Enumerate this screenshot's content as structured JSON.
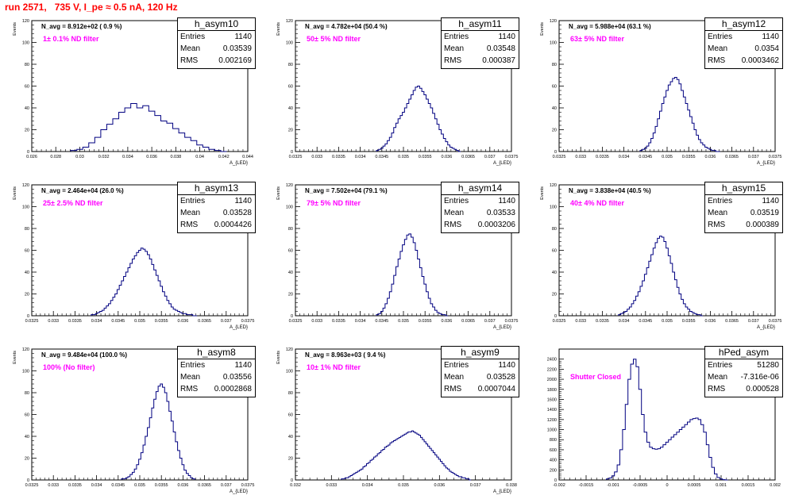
{
  "page": {
    "title": "run 2571,   735 V, I_pe ≈ 0.5 nA, 120 Hz"
  },
  "colors": {
    "title": "#ff0000",
    "histogram_line": "#000080",
    "annotation": "#ff00ff",
    "axes": "#000000"
  },
  "stats_labels": {
    "entries": "Entries",
    "mean": "Mean",
    "rms": "RMS"
  },
  "chart_data": [
    {
      "type": "histogram",
      "name": "h_asym10",
      "n_avg_text": "N_avg = 8.912e+02 ( 0.9 %)",
      "filter_text": "1± 0.1% ND filter",
      "entries": "1140",
      "mean": "0.03539",
      "rms": "0.002169",
      "ylabel": "Events",
      "xlabel": "A_{LED}",
      "xlim": [
        0.026,
        0.044
      ],
      "ylim": [
        0,
        120
      ],
      "x_ticks": [
        "0.026",
        "0.028",
        "0.03",
        "0.032",
        "0.034",
        "0.036",
        "0.038",
        "0.04",
        "0.042",
        "0.044"
      ],
      "y_ticks": [
        "0",
        "20",
        "40",
        "60",
        "80",
        "100",
        "120"
      ],
      "bin_centers": [
        0.0295,
        0.03,
        0.0305,
        0.031,
        0.0315,
        0.032,
        0.0325,
        0.033,
        0.0335,
        0.034,
        0.0345,
        0.035,
        0.0355,
        0.036,
        0.0365,
        0.037,
        0.0375,
        0.038,
        0.0385,
        0.039,
        0.0395,
        0.04,
        0.0405,
        0.041,
        0.0415,
        0.042
      ],
      "counts": [
        1,
        2,
        4,
        8,
        13,
        20,
        25,
        30,
        36,
        40,
        44,
        40,
        42,
        37,
        33,
        28,
        26,
        21,
        17,
        13,
        10,
        6,
        4,
        2,
        1,
        0
      ]
    },
    {
      "type": "histogram",
      "name": "h_asym11",
      "n_avg_text": "N_avg = 4.782e+04 (50.4 %)",
      "filter_text": "50± 5% ND filter",
      "entries": "1140",
      "mean": "0.03548",
      "rms": "0.000387",
      "ylabel": "Events",
      "xlabel": "A_{LED}",
      "xlim": [
        0.0325,
        0.0375
      ],
      "ylim": [
        0,
        120
      ],
      "x_ticks": [
        "0.0325",
        "0.033",
        "0.0335",
        "0.034",
        "0.0345",
        "0.035",
        "0.0355",
        "0.036",
        "0.0365",
        "0.037",
        "0.0375"
      ],
      "y_ticks": [
        "0",
        "20",
        "40",
        "60",
        "80",
        "100",
        "120"
      ],
      "bin_centers": [
        0.0344,
        0.03445,
        0.0345,
        0.03455,
        0.0346,
        0.03465,
        0.0347,
        0.03475,
        0.0348,
        0.03485,
        0.0349,
        0.03495,
        0.035,
        0.03505,
        0.0351,
        0.03515,
        0.0352,
        0.03525,
        0.0353,
        0.03535,
        0.0354,
        0.03545,
        0.0355,
        0.03555,
        0.0356,
        0.03565,
        0.0357,
        0.03575,
        0.0358,
        0.03585,
        0.0359,
        0.03595,
        0.036,
        0.03605,
        0.0361,
        0.03615,
        0.0362,
        0.03625,
        0.0363
      ],
      "counts": [
        1,
        2,
        3,
        5,
        7,
        10,
        13,
        17,
        22,
        26,
        30,
        33,
        36,
        40,
        44,
        48,
        52,
        56,
        59,
        60,
        58,
        55,
        52,
        48,
        44,
        40,
        35,
        30,
        25,
        20,
        16,
        12,
        9,
        6,
        4,
        3,
        2,
        1,
        0
      ]
    },
    {
      "type": "histogram",
      "name": "h_asym12",
      "n_avg_text": "N_avg = 5.988e+04 (63.1 %)",
      "filter_text": "63± 5% ND filter",
      "entries": "1140",
      "mean": "0.0354",
      "rms": "0.0003462",
      "ylabel": "Events",
      "xlabel": "A_{LED}",
      "xlim": [
        0.0325,
        0.0375
      ],
      "ylim": [
        0,
        120
      ],
      "x_ticks": [
        "0.0325",
        "0.033",
        "0.0335",
        "0.034",
        "0.0345",
        "0.035",
        "0.0355",
        "0.036",
        "0.0365",
        "0.037",
        "0.0375"
      ],
      "y_ticks": [
        "0",
        "20",
        "40",
        "60",
        "80",
        "100",
        "120"
      ],
      "bin_centers": [
        0.0344,
        0.03445,
        0.0345,
        0.03455,
        0.0346,
        0.03465,
        0.0347,
        0.03475,
        0.0348,
        0.03485,
        0.0349,
        0.03495,
        0.035,
        0.03505,
        0.0351,
        0.03515,
        0.0352,
        0.03525,
        0.0353,
        0.03535,
        0.0354,
        0.03545,
        0.0355,
        0.03555,
        0.0356,
        0.03565,
        0.0357,
        0.03575,
        0.0358,
        0.03585,
        0.0359,
        0.03595,
        0.036,
        0.03605,
        0.0361,
        0.03615,
        0.0362
      ],
      "counts": [
        1,
        2,
        3,
        5,
        8,
        12,
        17,
        23,
        30,
        37,
        44,
        50,
        56,
        61,
        64,
        67,
        68,
        66,
        62,
        56,
        50,
        44,
        38,
        32,
        26,
        20,
        15,
        11,
        8,
        6,
        4,
        3,
        2,
        1,
        1,
        0,
        0
      ]
    },
    {
      "type": "histogram",
      "name": "h_asym13",
      "n_avg_text": "N_avg = 2.464e+04 (26.0 %)",
      "filter_text": "25± 2.5% ND filter",
      "entries": "1140",
      "mean": "0.03528",
      "rms": "0.0004426",
      "ylabel": "Events",
      "xlabel": "A_{LED}",
      "xlim": [
        0.0325,
        0.0375
      ],
      "ylim": [
        0,
        120
      ],
      "x_ticks": [
        "0.0325",
        "0.033",
        "0.0335",
        "0.034",
        "0.0345",
        "0.035",
        "0.0355",
        "0.036",
        "0.0365",
        "0.037",
        "0.0375"
      ],
      "y_ticks": [
        "0",
        "20",
        "40",
        "60",
        "80",
        "100",
        "120"
      ],
      "bin_centers": [
        0.0339,
        0.03395,
        0.034,
        0.03405,
        0.0341,
        0.03415,
        0.0342,
        0.03425,
        0.0343,
        0.03435,
        0.0344,
        0.03445,
        0.0345,
        0.03455,
        0.0346,
        0.03465,
        0.0347,
        0.03475,
        0.0348,
        0.03485,
        0.0349,
        0.03495,
        0.035,
        0.03505,
        0.0351,
        0.03515,
        0.0352,
        0.03525,
        0.0353,
        0.03535,
        0.0354,
        0.03545,
        0.0355,
        0.03555,
        0.0356,
        0.03565,
        0.0357,
        0.03575,
        0.0358,
        0.03585,
        0.0359,
        0.03595,
        0.036,
        0.03605,
        0.0361,
        0.03615,
        0.0362,
        0.03625,
        0.0363
      ],
      "counts": [
        1,
        1,
        2,
        3,
        4,
        5,
        7,
        9,
        11,
        14,
        17,
        20,
        24,
        28,
        32,
        36,
        40,
        44,
        48,
        52,
        55,
        58,
        60,
        62,
        61,
        59,
        56,
        52,
        47,
        42,
        37,
        32,
        27,
        22,
        18,
        14,
        11,
        8,
        6,
        5,
        4,
        3,
        2,
        2,
        1,
        1,
        1,
        0,
        0
      ]
    },
    {
      "type": "histogram",
      "name": "h_asym14",
      "n_avg_text": "N_avg = 7.502e+04 (79.1 %)",
      "filter_text": "79± 5% ND filter",
      "entries": "1140",
      "mean": "0.03533",
      "rms": "0.0003206",
      "ylabel": "Events",
      "xlabel": "A_{LED}",
      "xlim": [
        0.0325,
        0.0375
      ],
      "ylim": [
        0,
        120
      ],
      "x_ticks": [
        "0.0325",
        "0.033",
        "0.0335",
        "0.034",
        "0.0345",
        "0.035",
        "0.0355",
        "0.036",
        "0.0365",
        "0.037",
        "0.0375"
      ],
      "y_ticks": [
        "0",
        "20",
        "40",
        "60",
        "80",
        "100",
        "120"
      ],
      "bin_centers": [
        0.0344,
        0.03445,
        0.0345,
        0.03455,
        0.0346,
        0.03465,
        0.0347,
        0.03475,
        0.0348,
        0.03485,
        0.0349,
        0.03495,
        0.035,
        0.03505,
        0.0351,
        0.03515,
        0.0352,
        0.03525,
        0.0353,
        0.03535,
        0.0354,
        0.03545,
        0.0355,
        0.03555,
        0.0356,
        0.03565,
        0.0357,
        0.03575,
        0.0358,
        0.03585,
        0.0359,
        0.03595,
        0.036
      ],
      "counts": [
        1,
        2,
        4,
        7,
        11,
        16,
        22,
        29,
        37,
        45,
        52,
        59,
        65,
        70,
        74,
        75,
        72,
        67,
        60,
        52,
        44,
        36,
        29,
        22,
        16,
        11,
        8,
        5,
        3,
        2,
        1,
        1,
        0
      ]
    },
    {
      "type": "histogram",
      "name": "h_asym15",
      "n_avg_text": "N_avg = 3.838e+04 (40.5 %)",
      "filter_text": "40± 4% ND filter",
      "entries": "1140",
      "mean": "0.03519",
      "rms": "0.000389",
      "ylabel": "Events",
      "xlabel": "A_{LED}",
      "xlim": [
        0.0325,
        0.0375
      ],
      "ylim": [
        0,
        120
      ],
      "x_ticks": [
        "0.0325",
        "0.033",
        "0.0335",
        "0.034",
        "0.0345",
        "0.035",
        "0.0355",
        "0.036",
        "0.0365",
        "0.037",
        "0.0375"
      ],
      "y_ticks": [
        "0",
        "20",
        "40",
        "60",
        "80",
        "100",
        "120"
      ],
      "bin_centers": [
        0.0339,
        0.03395,
        0.034,
        0.03405,
        0.0341,
        0.03415,
        0.0342,
        0.03425,
        0.0343,
        0.03435,
        0.0344,
        0.03445,
        0.0345,
        0.03455,
        0.0346,
        0.03465,
        0.0347,
        0.03475,
        0.0348,
        0.03485,
        0.0349,
        0.03495,
        0.035,
        0.03505,
        0.0351,
        0.03515,
        0.0352,
        0.03525,
        0.0353,
        0.03535,
        0.0354,
        0.03545,
        0.0355,
        0.03555,
        0.0356,
        0.03565,
        0.0357,
        0.03575,
        0.0358
      ],
      "counts": [
        1,
        2,
        3,
        4,
        6,
        8,
        11,
        14,
        18,
        22,
        27,
        32,
        38,
        44,
        50,
        56,
        62,
        67,
        71,
        73,
        72,
        68,
        62,
        55,
        48,
        40,
        33,
        26,
        20,
        15,
        11,
        8,
        6,
        4,
        3,
        2,
        1,
        1,
        0
      ]
    },
    {
      "type": "histogram",
      "name": "h_asym8",
      "n_avg_text": "N_avg = 9.484e+04 (100.0 %)",
      "filter_text": "100% (No filter)",
      "entries": "1140",
      "mean": "0.03556",
      "rms": "0.0002868",
      "ylabel": "Events",
      "xlabel": "A_{LED}",
      "xlim": [
        0.0325,
        0.0375
      ],
      "ylim": [
        0,
        120
      ],
      "x_ticks": [
        "0.0325",
        "0.033",
        "0.0335",
        "0.034",
        "0.0345",
        "0.035",
        "0.0355",
        "0.036",
        "0.0365",
        "0.037",
        "0.0375"
      ],
      "y_ticks": [
        "0",
        "20",
        "40",
        "60",
        "80",
        "100",
        "120"
      ],
      "bin_centers": [
        0.0346,
        0.03465,
        0.0347,
        0.03475,
        0.0348,
        0.03485,
        0.0349,
        0.03495,
        0.035,
        0.03505,
        0.0351,
        0.03515,
        0.0352,
        0.03525,
        0.0353,
        0.03535,
        0.0354,
        0.03545,
        0.0355,
        0.03555,
        0.0356,
        0.03565,
        0.0357,
        0.03575,
        0.0358,
        0.03585,
        0.0359,
        0.03595,
        0.036,
        0.03605,
        0.0361,
        0.03615,
        0.0362,
        0.03625
      ],
      "counts": [
        1,
        1,
        2,
        3,
        5,
        7,
        10,
        14,
        19,
        25,
        32,
        40,
        48,
        57,
        66,
        74,
        81,
        86,
        88,
        85,
        80,
        72,
        63,
        54,
        44,
        35,
        27,
        20,
        14,
        9,
        6,
        4,
        2,
        1
      ]
    },
    {
      "type": "histogram",
      "name": "h_asym9",
      "n_avg_text": "N_avg = 8.963e+03 ( 9.4 %)",
      "filter_text": "10± 1% ND filter",
      "entries": "1140",
      "mean": "0.03528",
      "rms": "0.0007044",
      "ylabel": "Events",
      "xlabel": "A_{LED}",
      "xlim": [
        0.032,
        0.038
      ],
      "ylim": [
        0,
        120
      ],
      "x_ticks": [
        "0.032",
        "0.033",
        "0.034",
        "0.035",
        "0.036",
        "0.037",
        "0.038"
      ],
      "y_ticks": [
        "0",
        "20",
        "40",
        "60",
        "80",
        "100",
        "120"
      ],
      "bin_centers": [
        0.0333,
        0.03335,
        0.0334,
        0.03345,
        0.0335,
        0.03355,
        0.0336,
        0.03365,
        0.0337,
        0.03375,
        0.0338,
        0.03385,
        0.0339,
        0.03395,
        0.034,
        0.03405,
        0.0341,
        0.03415,
        0.0342,
        0.03425,
        0.0343,
        0.03435,
        0.0344,
        0.03445,
        0.0345,
        0.03455,
        0.0346,
        0.03465,
        0.0347,
        0.03475,
        0.0348,
        0.03485,
        0.0349,
        0.03495,
        0.035,
        0.03505,
        0.0351,
        0.03515,
        0.0352,
        0.03525,
        0.0353,
        0.03535,
        0.0354,
        0.03545,
        0.0355,
        0.03555,
        0.0356,
        0.03565,
        0.0357,
        0.03575,
        0.0358,
        0.03585,
        0.0359,
        0.03595,
        0.036,
        0.03605,
        0.0361,
        0.03615,
        0.0362,
        0.03625,
        0.0363,
        0.03635,
        0.0364,
        0.03645,
        0.0365,
        0.03655,
        0.0366,
        0.03665,
        0.0367,
        0.03675,
        0.0368,
        0.03685
      ],
      "counts": [
        1,
        1,
        2,
        2,
        3,
        4,
        5,
        6,
        7,
        8,
        9,
        10,
        12,
        13,
        15,
        16,
        18,
        19,
        21,
        22,
        24,
        25,
        27,
        28,
        30,
        31,
        32,
        34,
        35,
        36,
        37,
        38,
        39,
        40,
        41,
        42,
        43,
        44,
        44,
        45,
        44,
        43,
        42,
        41,
        39,
        37,
        35,
        33,
        31,
        29,
        27,
        25,
        23,
        21,
        19,
        17,
        15,
        13,
        11,
        10,
        8,
        7,
        6,
        5,
        4,
        3,
        3,
        2,
        2,
        1,
        1,
        0
      ]
    },
    {
      "type": "histogram",
      "name": "hPed_asym",
      "n_avg_text": "",
      "filter_text": "Shutter Closed",
      "entries": "51280",
      "mean": "-7.316e-06",
      "rms": "0.000528",
      "ylabel": "",
      "xlabel": "",
      "xlim": [
        -0.002,
        0.002
      ],
      "ylim": [
        0,
        2600
      ],
      "x_ticks": [
        "-0.002",
        "-0.0015",
        "-0.001",
        "-0.0005",
        "0",
        "0.0005",
        "0.001",
        "0.0015",
        "0.002"
      ],
      "y_ticks": [
        "0",
        "200",
        "400",
        "600",
        "800",
        "1000",
        "1200",
        "1400",
        "1600",
        "1800",
        "2000",
        "2200",
        "2400"
      ],
      "bin_centers": [
        -0.0011,
        -0.00105,
        -0.001,
        -0.00095,
        -0.0009,
        -0.00085,
        -0.0008,
        -0.00075,
        -0.0007,
        -0.00065,
        -0.0006,
        -0.00055,
        -0.0005,
        -0.00045,
        -0.0004,
        -0.00035,
        -0.0003,
        -0.00025,
        -0.0002,
        -0.00015,
        -0.0001,
        -5e-05,
        0,
        5e-05,
        0.0001,
        0.00015,
        0.0002,
        0.00025,
        0.0003,
        0.00035,
        0.0004,
        0.00045,
        0.0005,
        0.00055,
        0.0006,
        0.00065,
        0.0007,
        0.00075,
        0.0008,
        0.00085,
        0.0009,
        0.00095,
        0.001,
        0.00105,
        0.0011
      ],
      "counts": [
        20,
        40,
        80,
        160,
        300,
        600,
        1000,
        1500,
        2000,
        2300,
        2400,
        2250,
        1800,
        1300,
        950,
        750,
        650,
        620,
        610,
        620,
        650,
        700,
        750,
        800,
        850,
        900,
        950,
        1000,
        1050,
        1100,
        1150,
        1200,
        1220,
        1230,
        1200,
        1100,
        950,
        700,
        450,
        250,
        120,
        50,
        20,
        5,
        0
      ]
    }
  ]
}
